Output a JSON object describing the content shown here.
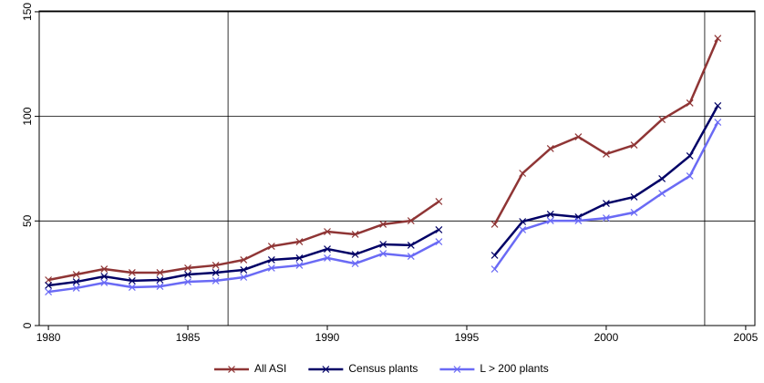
{
  "chart_data": {
    "type": "line",
    "x": [
      1980,
      1981,
      1982,
      1983,
      1984,
      1985,
      1986,
      1987,
      1988,
      1989,
      1990,
      1991,
      1992,
      1993,
      1994,
      1995,
      1996,
      1997,
      1998,
      1999,
      2000,
      2001,
      2002,
      2003,
      2004
    ],
    "series": [
      {
        "name": "All ASI",
        "color": "#8f3535",
        "values": [
          21.8,
          24.4,
          27,
          25.3,
          25.3,
          27.5,
          28.8,
          31.4,
          37.9,
          40.1,
          44.9,
          43.6,
          48.4,
          50.1,
          59.3,
          null,
          48.4,
          72.8,
          84.6,
          90.2,
          82,
          86.3,
          98.5,
          106.4,
          137.3
        ]
      },
      {
        "name": "Census plants",
        "color": "#000066",
        "values": [
          19.2,
          20.9,
          23.5,
          21.4,
          21.8,
          24.4,
          25.3,
          26.6,
          31.4,
          32.3,
          36.6,
          34,
          38.8,
          38.4,
          45.8,
          null,
          33.6,
          49.7,
          53.2,
          51.9,
          58.4,
          61.5,
          70.2,
          81.1,
          105.1
        ]
      },
      {
        "name": "L > 200 plants",
        "color": "#6a6af5",
        "values": [
          16.1,
          17.9,
          20.5,
          18.3,
          18.7,
          20.9,
          21.4,
          23.1,
          27.5,
          28.8,
          32.3,
          29.6,
          34.4,
          33.1,
          40.1,
          null,
          27,
          45.8,
          50.1,
          50.1,
          51.4,
          54.1,
          63.2,
          71.5,
          97.2
        ]
      }
    ],
    "xlim": [
      1979.67,
      2005.33
    ],
    "xticks": [
      1980,
      1985,
      1990,
      1995,
      2000,
      2005
    ],
    "ylim": [
      0,
      150.4
    ],
    "yticks": [
      0,
      50,
      100,
      150
    ],
    "grid": true,
    "vlines": [
      1986.44,
      2003.53
    ],
    "legend": "bottom"
  }
}
